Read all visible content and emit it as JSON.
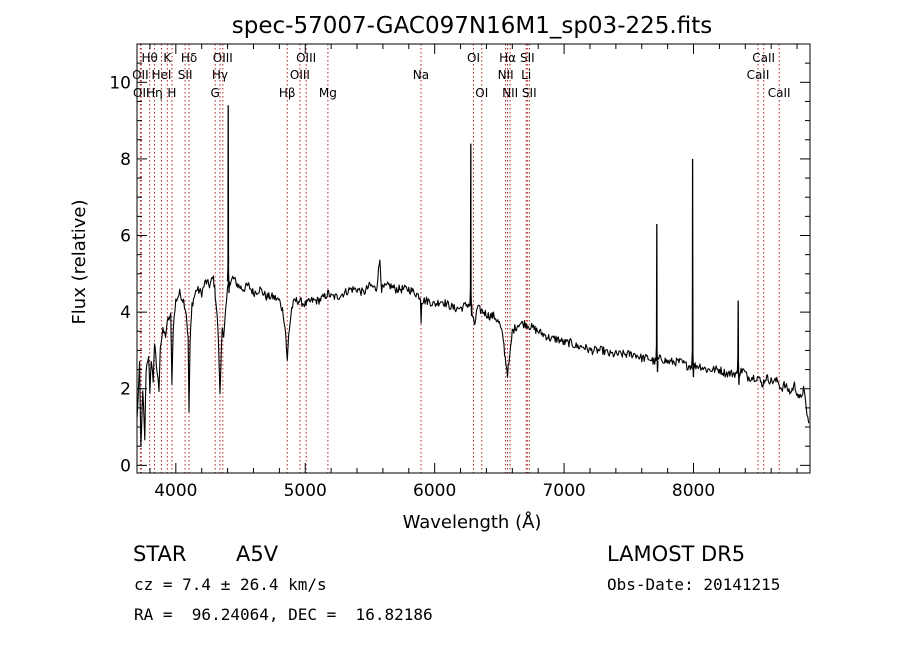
{
  "chart_data": {
    "type": "line",
    "title": "spec-57007-GAC097N16M1_sp03-225.fits",
    "xlabel": "Wavelength (Å)",
    "ylabel": "Flux (relative)",
    "xlim": [
      3700,
      8900
    ],
    "ylim": [
      -0.2,
      11.0
    ],
    "x_ticks": [
      4000,
      5000,
      6000,
      7000,
      8000
    ],
    "y_ticks": [
      0,
      2,
      4,
      6,
      8,
      10
    ],
    "grid": false,
    "line_color": "#000000",
    "marker_line_color": "#b22222",
    "spectrum_keypoints": [
      [
        3700,
        1.2
      ],
      [
        3720,
        2.6
      ],
      [
        3730,
        0.5
      ],
      [
        3745,
        1.9
      ],
      [
        3760,
        0.7
      ],
      [
        3770,
        2.5
      ],
      [
        3790,
        2.9
      ],
      [
        3800,
        1.8
      ],
      [
        3810,
        2.8
      ],
      [
        3825,
        2.2
      ],
      [
        3835,
        3.2
      ],
      [
        3850,
        2.6
      ],
      [
        3870,
        2.0
      ],
      [
        3880,
        3.1
      ],
      [
        3900,
        3.5
      ],
      [
        3920,
        3.4
      ],
      [
        3940,
        3.8
      ],
      [
        3960,
        3.9
      ],
      [
        3970,
        2.2
      ],
      [
        3980,
        3.6
      ],
      [
        4000,
        4.3
      ],
      [
        4030,
        4.5
      ],
      [
        4060,
        4.3
      ],
      [
        4080,
        4.0
      ],
      [
        4095,
        3.3
      ],
      [
        4102,
        1.4
      ],
      [
        4110,
        3.2
      ],
      [
        4125,
        4.2
      ],
      [
        4160,
        4.6
      ],
      [
        4200,
        4.5
      ],
      [
        4230,
        4.8
      ],
      [
        4260,
        4.7
      ],
      [
        4290,
        4.9
      ],
      [
        4300,
        4.6
      ],
      [
        4310,
        4.3
      ],
      [
        4325,
        3.6
      ],
      [
        4335,
        2.6
      ],
      [
        4341,
        1.8
      ],
      [
        4348,
        2.6
      ],
      [
        4358,
        3.7
      ],
      [
        4370,
        3.3
      ],
      [
        4385,
        4.0
      ],
      [
        4405,
        4.8
      ],
      [
        4420,
        4.7
      ],
      [
        4440,
        4.9
      ],
      [
        4480,
        4.7
      ],
      [
        4520,
        4.6
      ],
      [
        4560,
        4.7
      ],
      [
        4600,
        4.5
      ],
      [
        4650,
        4.6
      ],
      [
        4700,
        4.4
      ],
      [
        4750,
        4.4
      ],
      [
        4800,
        4.3
      ],
      [
        4830,
        4.0
      ],
      [
        4850,
        3.4
      ],
      [
        4861,
        2.7
      ],
      [
        4872,
        3.4
      ],
      [
        4895,
        4.1
      ],
      [
        4920,
        4.3
      ],
      [
        4950,
        4.3
      ],
      [
        5000,
        4.2
      ],
      [
        5050,
        4.3
      ],
      [
        5100,
        4.3
      ],
      [
        5150,
        4.4
      ],
      [
        5180,
        4.5
      ],
      [
        5200,
        4.4
      ],
      [
        5250,
        4.4
      ],
      [
        5300,
        4.5
      ],
      [
        5350,
        4.6
      ],
      [
        5400,
        4.6
      ],
      [
        5450,
        4.5
      ],
      [
        5500,
        4.7
      ],
      [
        5550,
        4.6
      ],
      [
        5577,
        5.4
      ],
      [
        5590,
        4.6
      ],
      [
        5650,
        4.7
      ],
      [
        5700,
        4.6
      ],
      [
        5750,
        4.6
      ],
      [
        5800,
        4.6
      ],
      [
        5850,
        4.5
      ],
      [
        5890,
        4.4
      ],
      [
        5895,
        3.8
      ],
      [
        5900,
        4.3
      ],
      [
        5950,
        4.3
      ],
      [
        6000,
        4.2
      ],
      [
        6050,
        4.3
      ],
      [
        6100,
        4.2
      ],
      [
        6150,
        4.1
      ],
      [
        6200,
        4.1
      ],
      [
        6250,
        4.2
      ],
      [
        6280,
        4.2
      ],
      [
        6295,
        3.8
      ],
      [
        6310,
        3.7
      ],
      [
        6330,
        4.1
      ],
      [
        6380,
        4.0
      ],
      [
        6420,
        3.9
      ],
      [
        6460,
        3.9
      ],
      [
        6500,
        3.7
      ],
      [
        6530,
        3.3
      ],
      [
        6545,
        2.8
      ],
      [
        6563,
        2.4
      ],
      [
        6580,
        2.8
      ],
      [
        6600,
        3.5
      ],
      [
        6650,
        3.7
      ],
      [
        6700,
        3.7
      ],
      [
        6750,
        3.6
      ],
      [
        6800,
        3.5
      ],
      [
        6850,
        3.4
      ],
      [
        6900,
        3.3
      ],
      [
        6950,
        3.3
      ],
      [
        7000,
        3.2
      ],
      [
        7050,
        3.2
      ],
      [
        7100,
        3.1
      ],
      [
        7150,
        3.1
      ],
      [
        7200,
        3.0
      ],
      [
        7250,
        3.0
      ],
      [
        7300,
        3.0
      ],
      [
        7350,
        2.9
      ],
      [
        7400,
        2.9
      ],
      [
        7450,
        2.9
      ],
      [
        7500,
        2.9
      ],
      [
        7550,
        2.9
      ],
      [
        7600,
        2.8
      ],
      [
        7650,
        2.8
      ],
      [
        7700,
        2.7
      ],
      [
        7750,
        2.8
      ],
      [
        7800,
        2.7
      ],
      [
        7850,
        2.7
      ],
      [
        7900,
        2.7
      ],
      [
        7950,
        2.6
      ],
      [
        8000,
        2.6
      ],
      [
        8050,
        2.6
      ],
      [
        8100,
        2.5
      ],
      [
        8150,
        2.5
      ],
      [
        8200,
        2.5
      ],
      [
        8250,
        2.4
      ],
      [
        8300,
        2.4
      ],
      [
        8350,
        2.4
      ],
      [
        8380,
        2.5
      ],
      [
        8420,
        2.3
      ],
      [
        8470,
        2.3
      ],
      [
        8500,
        2.3
      ],
      [
        8530,
        2.1
      ],
      [
        8560,
        2.3
      ],
      [
        8600,
        2.2
      ],
      [
        8650,
        2.2
      ],
      [
        8680,
        2.0
      ],
      [
        8700,
        2.1
      ],
      [
        8750,
        1.9
      ],
      [
        8780,
        2.1
      ],
      [
        8820,
        1.7
      ],
      [
        8850,
        2.0
      ],
      [
        8870,
        1.5
      ],
      [
        8890,
        1.1
      ]
    ],
    "emission_spikes": [
      [
        4405,
        9.4
      ],
      [
        6279,
        8.4
      ],
      [
        7716,
        6.3
      ],
      [
        7993,
        8.0
      ],
      [
        8345,
        4.3
      ]
    ],
    "line_markers": [
      {
        "wavelength": 3726,
        "label": "OII",
        "row": 2
      },
      {
        "wavelength": 3733,
        "label": "OII",
        "row": 3
      },
      {
        "wavelength": 3798,
        "label": "Hθ",
        "row": 1
      },
      {
        "wavelength": 3835,
        "label": "Hη",
        "row": 3
      },
      {
        "wavelength": 3889,
        "label": "HeI",
        "row": 2
      },
      {
        "wavelength": 3934,
        "label": "K",
        "row": 1
      },
      {
        "wavelength": 3970,
        "label": "H",
        "row": 3
      },
      {
        "wavelength": 4102,
        "label": "Hδ",
        "row": 1
      },
      {
        "wavelength": 4072,
        "label": "SII",
        "row": 2
      },
      {
        "wavelength": 4304,
        "label": "G",
        "row": 3
      },
      {
        "wavelength": 4341,
        "label": "Hγ",
        "row": 2
      },
      {
        "wavelength": 4363,
        "label": "OIII",
        "row": 1
      },
      {
        "wavelength": 4861,
        "label": "Hβ",
        "row": 3
      },
      {
        "wavelength": 4959,
        "label": "OIII",
        "row": 2
      },
      {
        "wavelength": 5007,
        "label": "OIII",
        "row": 1
      },
      {
        "wavelength": 5175,
        "label": "Mg",
        "row": 3
      },
      {
        "wavelength": 5894,
        "label": "Na",
        "row": 2
      },
      {
        "wavelength": 6300,
        "label": "OI",
        "row": 1
      },
      {
        "wavelength": 6364,
        "label": "OI",
        "row": 3
      },
      {
        "wavelength": 6548,
        "label": "NII",
        "row": 2
      },
      {
        "wavelength": 6563,
        "label": "Hα",
        "row": 1
      },
      {
        "wavelength": 6583,
        "label": "NII",
        "row": 3
      },
      {
        "wavelength": 6707,
        "label": "Li",
        "row": 2
      },
      {
        "wavelength": 6716,
        "label": "SII",
        "row": 1
      },
      {
        "wavelength": 6731,
        "label": "SII",
        "row": 3
      },
      {
        "wavelength": 8498,
        "label": "CaII",
        "row": 2
      },
      {
        "wavelength": 8542,
        "label": "CaII",
        "row": 1
      },
      {
        "wavelength": 8662,
        "label": "CaII",
        "row": 3
      }
    ]
  },
  "info": {
    "object_class": "STAR",
    "subclass": "A5V",
    "survey": "LAMOST DR5",
    "redshift": "cz = 7.4 ± 26.4 km/s",
    "obs_date": "Obs-Date: 20141215",
    "coords": "RA =  96.24064, DEC =  16.82186"
  }
}
